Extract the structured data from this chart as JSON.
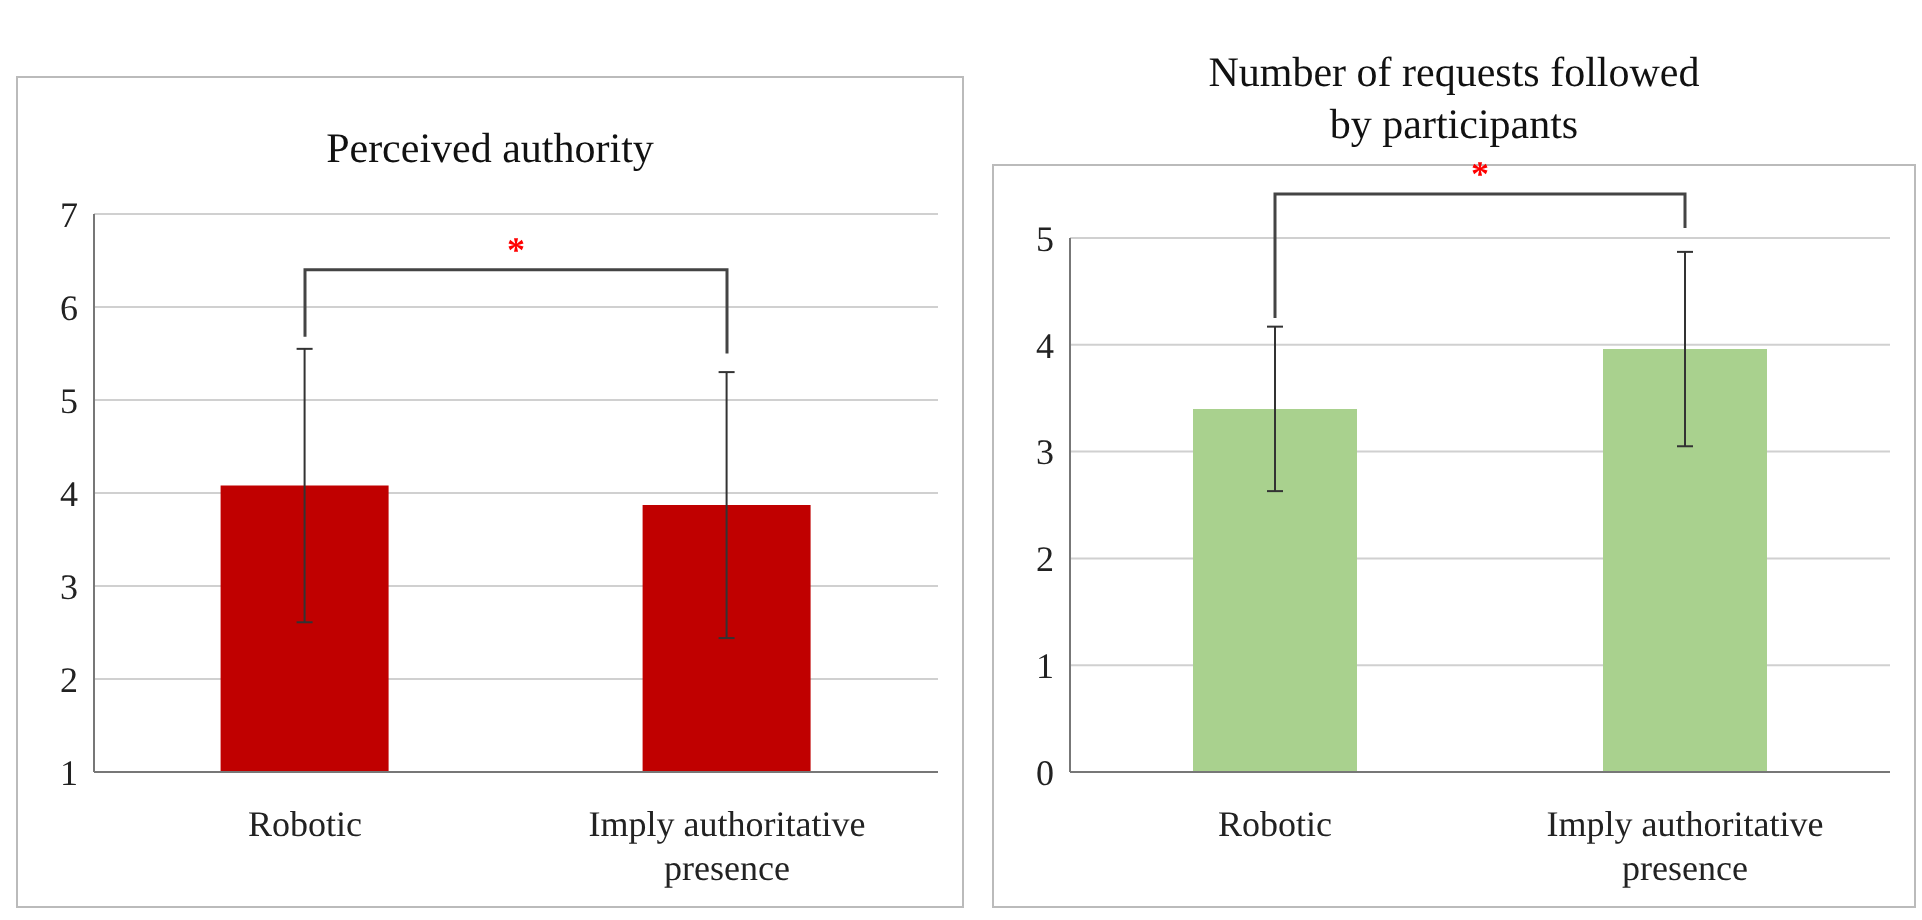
{
  "chart_data": [
    {
      "type": "bar",
      "title": "Perceived authority",
      "categories": [
        "Robotic",
        "Imply authoritative presence"
      ],
      "values": [
        4.08,
        3.87
      ],
      "errors": [
        1.47,
        1.43
      ],
      "color": "#c00000",
      "ylim": [
        1,
        7
      ],
      "yticks": [
        1,
        2,
        3,
        4,
        5,
        6,
        7
      ],
      "grid": "y",
      "annotations": [
        "*"
      ]
    },
    {
      "type": "bar",
      "title": "Number of requests followed by participants",
      "categories": [
        "Robotic",
        "Imply authoritative presence"
      ],
      "values": [
        3.4,
        3.96
      ],
      "errors": [
        0.77,
        0.91
      ],
      "color": "#a9d18e",
      "ylim": [
        0,
        5
      ],
      "yticks": [
        0,
        1,
        2,
        3,
        4,
        5
      ],
      "grid": "y",
      "annotations": [
        "*"
      ]
    }
  ]
}
